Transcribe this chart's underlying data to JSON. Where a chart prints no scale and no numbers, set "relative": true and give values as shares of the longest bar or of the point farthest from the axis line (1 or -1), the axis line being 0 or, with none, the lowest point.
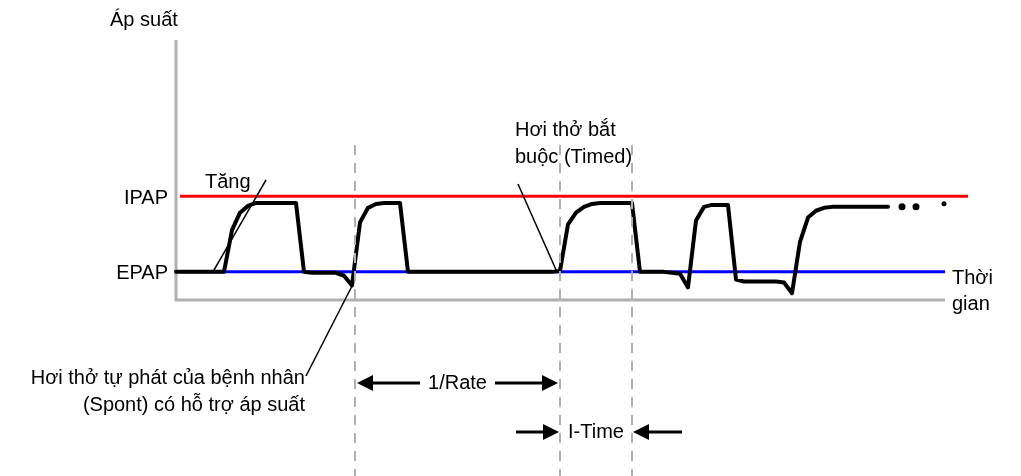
{
  "chart_data": {
    "type": "line",
    "relative": true,
    "xlabel": "Thời gian",
    "legend": false,
    "marker": "none",
    "line_style": "solid",
    "categories": [
      null,
      null,
      null,
      null,
      null,
      null,
      null,
      null,
      null,
      null,
      null,
      null,
      null,
      null,
      null,
      null,
      null,
      null,
      null,
      null,
      null,
      null,
      null,
      null,
      null,
      null,
      null,
      null,
      null,
      null,
      null,
      null,
      null,
      null,
      null,
      null,
      null,
      null,
      null,
      null,
      null,
      null,
      null,
      null,
      null,
      null,
      null,
      null,
      null,
      null,
      null,
      null,
      null,
      null,
      null,
      null,
      null,
      null,
      null,
      null,
      null,
      null,
      null,
      null,
      null,
      null,
      null,
      null,
      null,
      null,
      null,
      null,
      null,
      null,
      null,
      null,
      null,
      null,
      null,
      null,
      null,
      null,
      null,
      null,
      null,
      null,
      null,
      null,
      null,
      null
    ],
    "series": [
      {
        "color": "#000000",
        "values": [
          0.29,
          0.29,
          0.29,
          0.29,
          0.29,
          0.29,
          0.29,
          0.72,
          0.9,
          0.97,
          1,
          1,
          1,
          1,
          1,
          1,
          0.29,
          0.28,
          0.28,
          0.28,
          0.28,
          0.25,
          0.15,
          0.8,
          0.95,
          0.99,
          1,
          1,
          1,
          0.29,
          0.29,
          0.29,
          0.29,
          0.29,
          0.29,
          0.29,
          0.29,
          0.29,
          0.29,
          0.29,
          0.29,
          0.29,
          0.29,
          0.29,
          0.29,
          0.29,
          0.29,
          0.29,
          0.3,
          0.78,
          0.9,
          0.96,
          0.99,
          1,
          1,
          1,
          1,
          1,
          0.29,
          0.29,
          0.29,
          0.29,
          0.28,
          0.27,
          0.13,
          0.82,
          0.96,
          0.98,
          0.98,
          0.98,
          0.21,
          0.19,
          0.19,
          0.19,
          0.19,
          0.19,
          0.18,
          0.07,
          0.6,
          0.85,
          0.92,
          0.95,
          0.96,
          0.96,
          0.96,
          0.96,
          0.96,
          0.96,
          0.96,
          0.96
        ]
      }
    ],
    "ref_lines": [
      {
        "axis": "y",
        "value": 1.07,
        "label": "IPAP",
        "color": "#ff0000"
      },
      {
        "axis": "y",
        "value": 0.29,
        "label": "EPAP",
        "color": "#0000ff"
      }
    ],
    "annotations": [
      "Tăng",
      "Hơi thở bắt buộc (Timed)",
      "Hơi thở tự phát của bệnh nhân (Spont) có hỗ trợ áp suất",
      "1/Rate",
      "I-Time",
      "Áp suất"
    ]
  }
}
